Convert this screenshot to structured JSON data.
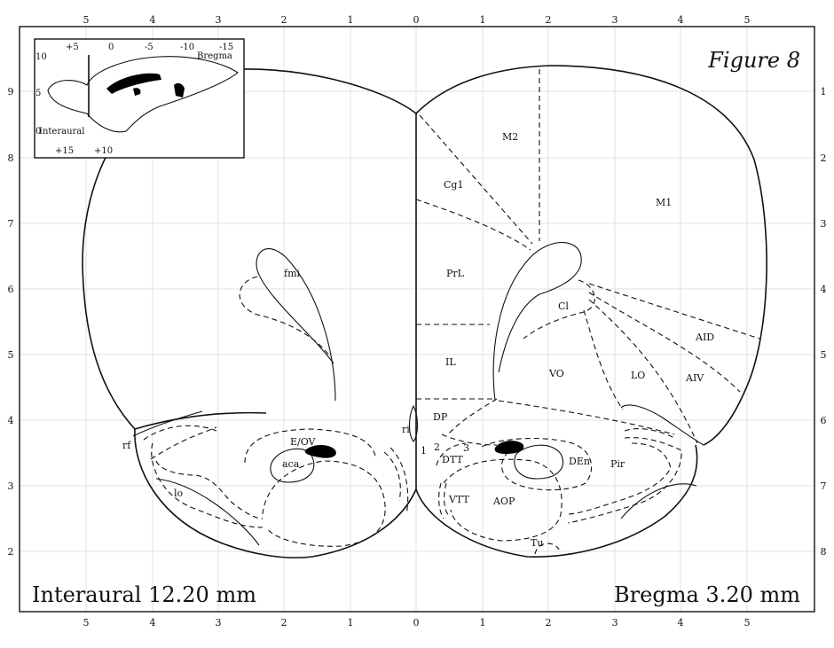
{
  "figure_label": "Figure 8",
  "caption_left": "Interaural 12.20 mm",
  "caption_right": "Bregma 3.20 mm",
  "top_ticks": [
    "5",
    "4",
    "3",
    "2",
    "1",
    "0",
    "1",
    "2",
    "3",
    "4",
    "5"
  ],
  "bottom_ticks": [
    "5",
    "4",
    "3",
    "2",
    "1",
    "0",
    "1",
    "2",
    "3",
    "4",
    "5"
  ],
  "left_ticks": [
    "9",
    "8",
    "7",
    "6",
    "5",
    "4",
    "3",
    "2"
  ],
  "right_ticks": [
    "1",
    "2",
    "3",
    "4",
    "5",
    "6",
    "7",
    "8"
  ],
  "inset": {
    "top_scale": [
      "+5",
      "0",
      "-5",
      "-10",
      "-15"
    ],
    "bottom_scale": [
      "+15",
      "+10"
    ],
    "left_scale": [
      "10",
      "5",
      "0"
    ],
    "label_bregma": "Bregma",
    "label_interaural": "Interaural"
  },
  "regions": {
    "m2": "M2",
    "cg1": "Cg1",
    "m1": "M1",
    "prl": "PrL",
    "fmi": "fmi",
    "cl": "Cl",
    "aid": "AID",
    "il": "IL",
    "vo": "VO",
    "lo": "LO",
    "aiv": "AIV",
    "dp": "DP",
    "ri": "ri",
    "rf": "rf",
    "e_ov": "E/OV",
    "aca": "aca",
    "dtt": "DTT",
    "den": "DEn",
    "pir": "Pir",
    "lo_tract": "lo",
    "vtt": "VTT",
    "aop": "AOP",
    "tu": "Tu",
    "layer1": "1",
    "layer2": "2",
    "layer3": "3"
  }
}
